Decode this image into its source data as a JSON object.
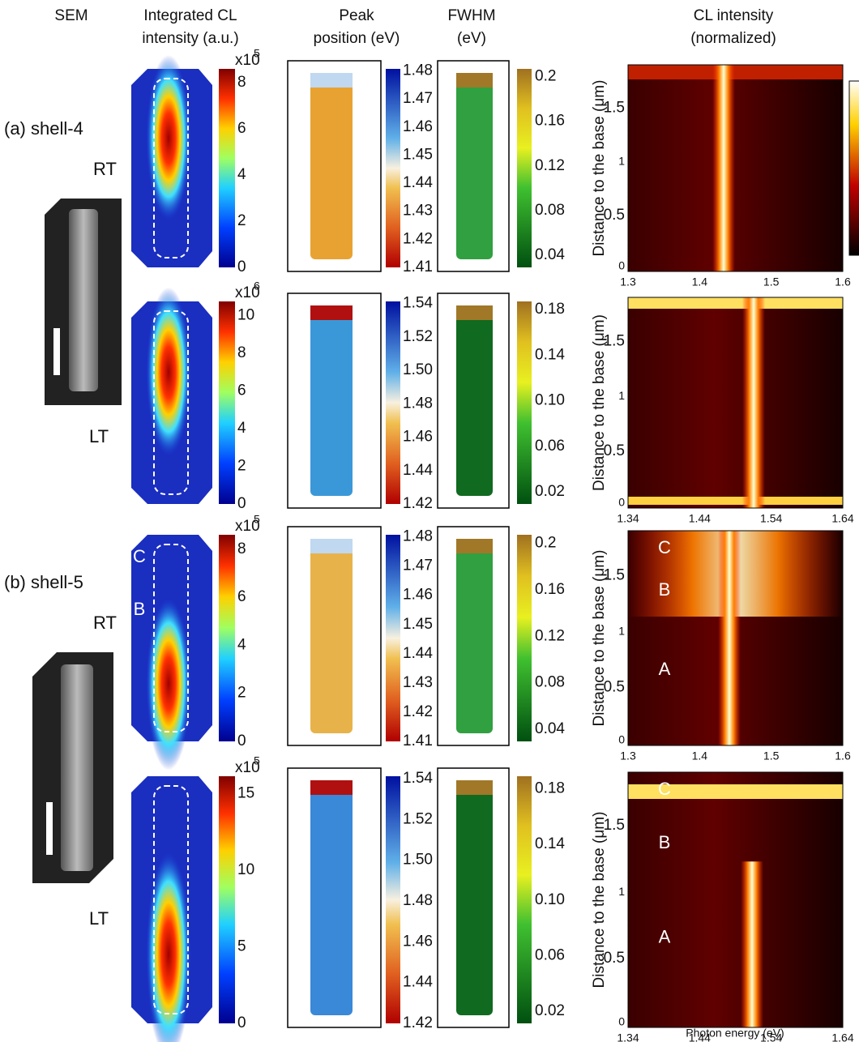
{
  "headers": {
    "sem": "SEM",
    "intensity": [
      "Integrated CL",
      "intensity (a.u.)"
    ],
    "peak": [
      "Peak",
      "position (eV)"
    ],
    "fwhm": [
      "FWHM",
      "(eV)"
    ],
    "spectrum": [
      "CL intensity",
      "(normalized)"
    ]
  },
  "samples": [
    {
      "label": "(a) shell-4",
      "conditions": [
        "RT",
        "LT"
      ]
    },
    {
      "label": "(b) shell-5",
      "conditions": [
        "RT",
        "LT"
      ]
    }
  ],
  "rows": [
    {
      "intensity_scale": "x10",
      "intensity_exponent": "5",
      "intensity_ticks": [
        "0",
        "2",
        "4",
        "6",
        "8"
      ],
      "peak_ticks": [
        "1.41",
        "1.42",
        "1.43",
        "1.44",
        "1.45",
        "1.46",
        "1.47",
        "1.48"
      ],
      "fwhm_ticks": [
        "0.04",
        "0.08",
        "0.12",
        "0.16",
        "0.2"
      ],
      "spectrum_xticks": [
        "1.3",
        "1.4",
        "1.5",
        "1.6"
      ],
      "spectrum_yticks": [
        "0",
        "0.5",
        "1",
        "1.5"
      ],
      "regions": []
    },
    {
      "intensity_scale": "x10",
      "intensity_exponent": "6",
      "intensity_ticks": [
        "0",
        "2",
        "4",
        "6",
        "8",
        "10"
      ],
      "peak_ticks": [
        "1.42",
        "1.44",
        "1.46",
        "1.48",
        "1.50",
        "1.52",
        "1.54"
      ],
      "fwhm_ticks": [
        "0.02",
        "0.06",
        "0.10",
        "0.14",
        "0.18"
      ],
      "spectrum_xticks": [
        "1.34",
        "1.44",
        "1.54",
        "1.64"
      ],
      "spectrum_yticks": [
        "0",
        "0.5",
        "1",
        "1.5"
      ],
      "regions": []
    },
    {
      "intensity_scale": "x10",
      "intensity_exponent": "5",
      "intensity_ticks": [
        "0",
        "2",
        "4",
        "6",
        "8"
      ],
      "peak_ticks": [
        "1.41",
        "1.42",
        "1.43",
        "1.44",
        "1.45",
        "1.46",
        "1.47",
        "1.48"
      ],
      "fwhm_ticks": [
        "0.04",
        "0.08",
        "0.12",
        "0.16",
        "0.2"
      ],
      "spectrum_xticks": [
        "1.3",
        "1.4",
        "1.5",
        "1.6"
      ],
      "spectrum_yticks": [
        "0",
        "0.5",
        "1",
        "1.5"
      ],
      "regions": [
        "C",
        "B",
        "A"
      ]
    },
    {
      "intensity_scale": "x10",
      "intensity_exponent": "5",
      "intensity_ticks": [
        "0",
        "5",
        "10",
        "15"
      ],
      "peak_ticks": [
        "1.42",
        "1.44",
        "1.46",
        "1.48",
        "1.50",
        "1.52",
        "1.54"
      ],
      "fwhm_ticks": [
        "0.02",
        "0.06",
        "0.10",
        "0.14",
        "0.18"
      ],
      "spectrum_xticks": [
        "1.34",
        "1.44",
        "1.54",
        "1.64"
      ],
      "spectrum_yticks": [
        "0",
        "0.5",
        "1",
        "1.5"
      ],
      "regions": [
        "C",
        "B",
        "A"
      ]
    }
  ],
  "spectrum_ylabel": "Distance to the base (μm)",
  "spectrum_xlabel": "Photon energy (eV)"
}
